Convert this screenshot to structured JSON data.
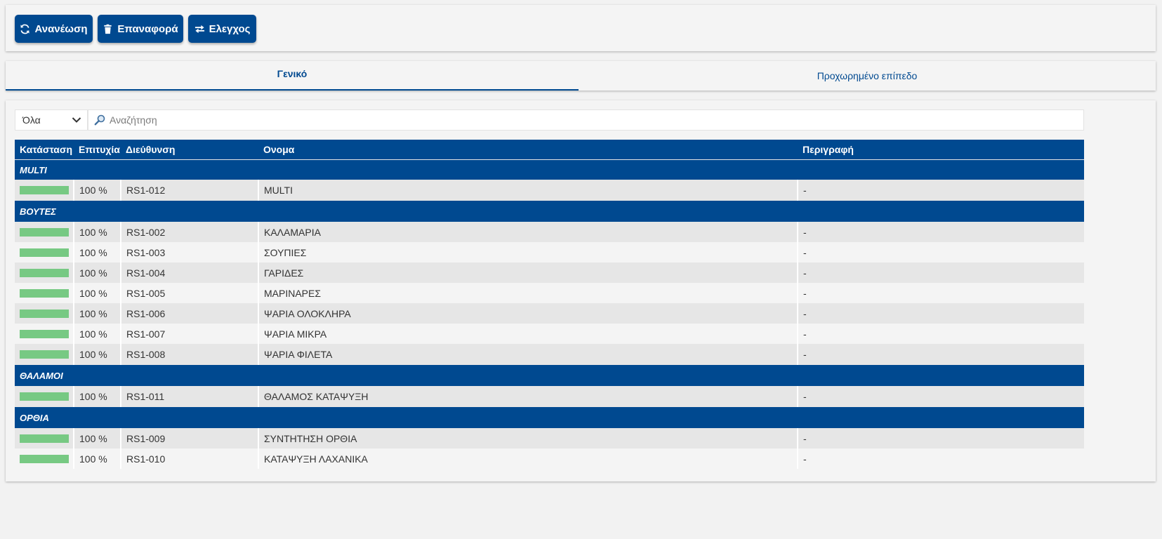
{
  "toolbar": {
    "refresh_label": "Ανανέωση",
    "reset_label": "Επαναφορά",
    "check_label": "Ελεγχος"
  },
  "tabs": [
    {
      "label": "Γενικό",
      "active": true
    },
    {
      "label": "Προχωρημένο επίπεδο",
      "active": false
    }
  ],
  "filter": {
    "selected": "Όλα",
    "search_placeholder": "Αναζήτηση"
  },
  "colors": {
    "brand": "#004990",
    "status_ok": "#77c983",
    "success_text": "#5cb85c"
  },
  "table": {
    "columns": [
      "Κατάσταση",
      "Επιτυχία",
      "Διεύθυνση",
      "Ονομα",
      "Περιγραφή"
    ],
    "groups": [
      {
        "name": "MULTI",
        "rows": [
          {
            "status": 1.0,
            "success": "100 %",
            "address": "RS1-012",
            "name": "MULTI",
            "description": "-"
          }
        ]
      },
      {
        "name": "ΒΟΥΤΕΣ",
        "rows": [
          {
            "status": 1.0,
            "success": "100 %",
            "address": "RS1-002",
            "name": "ΚΑΛΑΜΑΡΙΑ",
            "description": "-"
          },
          {
            "status": 1.0,
            "success": "100 %",
            "address": "RS1-003",
            "name": "ΣΟΥΠΙΕΣ",
            "description": "-"
          },
          {
            "status": 1.0,
            "success": "100 %",
            "address": "RS1-004",
            "name": "ΓΑΡΙΔΕΣ",
            "description": "-"
          },
          {
            "status": 1.0,
            "success": "100 %",
            "address": "RS1-005",
            "name": "ΜΑΡΙΝΑΡΕΣ",
            "description": "-"
          },
          {
            "status": 1.0,
            "success": "100 %",
            "address": "RS1-006",
            "name": "ΨΑΡΙΑ ΟΛΟΚΛΗΡΑ",
            "description": "-"
          },
          {
            "status": 1.0,
            "success": "100 %",
            "address": "RS1-007",
            "name": "ΨΑΡΙΑ ΜΙΚΡΑ",
            "description": "-"
          },
          {
            "status": 1.0,
            "success": "100 %",
            "address": "RS1-008",
            "name": "ΨΑΡΙΑ ΦΙΛΕΤΑ",
            "description": "-"
          }
        ]
      },
      {
        "name": "ΘΑΛΑΜΟΙ",
        "rows": [
          {
            "status": 1.0,
            "success": "100 %",
            "address": "RS1-011",
            "name": "ΘΑΛΑΜΟΣ ΚΑΤΑΨΥΞΗ",
            "description": "-"
          }
        ]
      },
      {
        "name": "ΟΡΘΙΑ",
        "rows": [
          {
            "status": 1.0,
            "success": "100 %",
            "address": "RS1-009",
            "name": "ΣΥΝΤΗΤΗΣΗ ΟΡΘΙΑ",
            "description": "-"
          },
          {
            "status": 1.0,
            "success": "100 %",
            "address": "RS1-010",
            "name": "ΚΑΤΑΨΥΞΗ ΛΑΧΑΝΙΚΑ",
            "description": "-"
          }
        ]
      }
    ]
  }
}
